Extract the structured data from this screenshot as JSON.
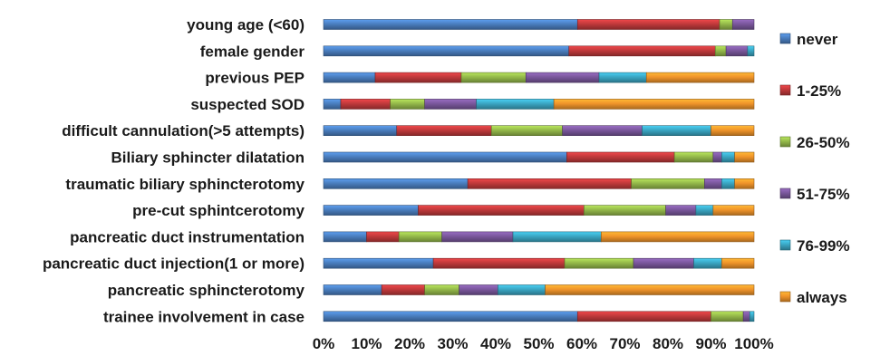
{
  "chart_data": {
    "type": "bar",
    "orientation": "horizontal",
    "stacked": "percent",
    "categories": [
      "young age (<60)",
      "female gender",
      "previous PEP",
      "suspected SOD",
      "difficult cannulation(>5 attempts)",
      "Biliary sphincter dilatation",
      "traumatic biliary sphincterotomy",
      "pre-cut sphintcerotomy",
      "pancreatic duct instrumentation",
      "pancreatic duct injection(1 or more)",
      "pancreatic sphincterotomy",
      "trainee involvement in case"
    ],
    "series": [
      {
        "name": "never",
        "color": "#4a7ebf",
        "values": [
          59,
          57,
          12,
          4,
          17,
          56.5,
          33.5,
          22,
          10,
          25.5,
          13.5,
          59
        ]
      },
      {
        "name": "1-25%",
        "color": "#c0393b",
        "values": [
          33,
          34,
          20,
          11.5,
          22,
          25,
          38,
          38.5,
          7.5,
          30.5,
          10,
          31
        ]
      },
      {
        "name": "26-50%",
        "color": "#94b94a",
        "values": [
          3,
          2.5,
          15,
          8,
          16.5,
          9,
          17,
          19,
          10,
          16,
          8,
          7.5
        ]
      },
      {
        "name": "51-75%",
        "color": "#7a579c",
        "values": [
          5,
          5,
          17,
          12,
          18.5,
          2,
          4,
          7,
          16.5,
          14,
          9,
          1.5
        ]
      },
      {
        "name": "76-99%",
        "color": "#3aa6c3",
        "values": [
          0,
          1.5,
          11,
          18,
          16,
          3,
          3,
          4,
          20.5,
          6.5,
          11,
          1
        ]
      },
      {
        "name": "always",
        "color": "#f0942a",
        "values": [
          0,
          0,
          25,
          46.5,
          10,
          4.5,
          4.5,
          9.5,
          35.5,
          7.5,
          48.5,
          0
        ]
      }
    ],
    "x_ticks": [
      "0%",
      "10%",
      "20%",
      "30%",
      "40%",
      "50%",
      "60%",
      "70%",
      "80%",
      "90%",
      "100%"
    ],
    "xlim": [
      0,
      100
    ],
    "grid": false,
    "legend_position": "right"
  }
}
